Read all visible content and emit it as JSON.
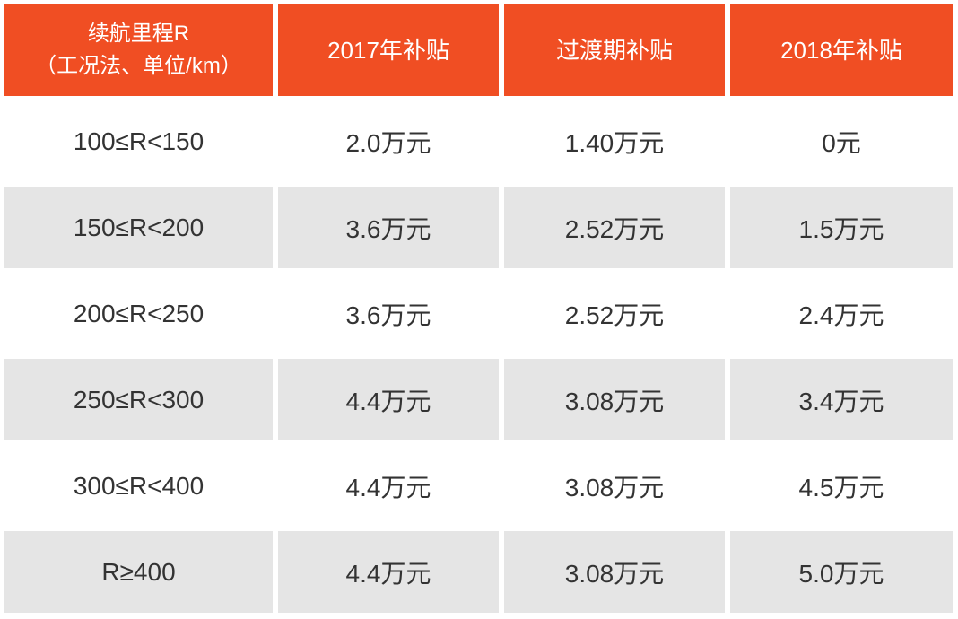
{
  "table": {
    "header": [
      "续航里程R\n（工况法、单位/km）",
      "2017年补贴",
      "过渡期补贴",
      "2018年补贴"
    ],
    "rows": [
      [
        "100≤R<150",
        "2.0万元",
        "1.40万元",
        "0元"
      ],
      [
        "150≤R<200",
        "3.6万元",
        "2.52万元",
        "1.5万元"
      ],
      [
        "200≤R<250",
        "3.6万元",
        "2.52万元",
        "2.4万元"
      ],
      [
        "250≤R<300",
        "4.4万元",
        "3.08万元",
        "3.4万元"
      ],
      [
        "300≤R<400",
        "4.4万元",
        "3.08万元",
        "4.5万元"
      ],
      [
        "R≥400",
        "4.4万元",
        "3.08万元",
        "5.0万元"
      ]
    ]
  }
}
